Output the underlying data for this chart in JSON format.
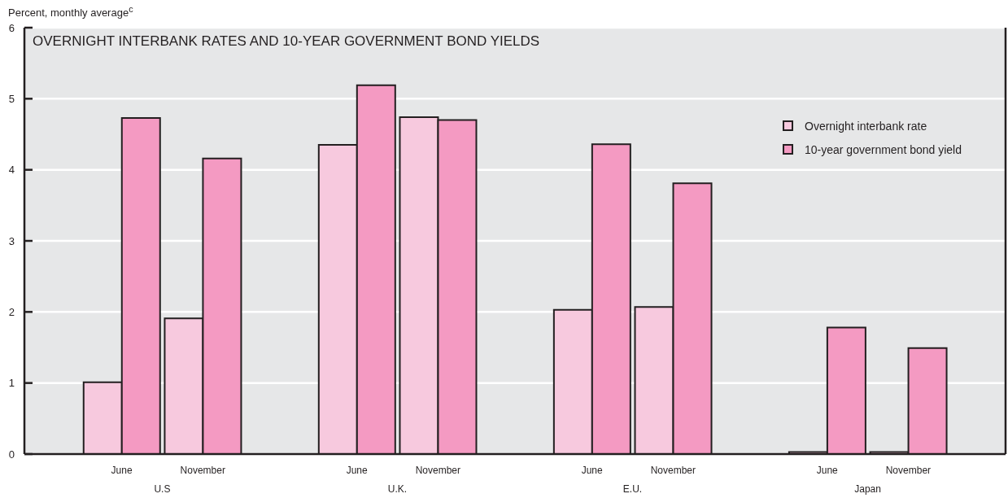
{
  "chart_data": {
    "type": "bar",
    "title": "OVERNIGHT INTERBANK RATES AND 10-YEAR GOVERNMENT BOND YIELDS",
    "ylabel": "Percent, monthly average$^{c}$",
    "categories": [
      "June",
      "November",
      "June",
      "November",
      "June",
      "November",
      "June",
      "November"
    ],
    "annotations": [
      "U.S",
      "U.K.",
      "E.U.",
      "Japan"
    ],
    "series": [
      {
        "name": "Overnight interbank rate",
        "color": "#f7c9de",
        "values": [
          1.01,
          1.91,
          4.35,
          4.74,
          2.03,
          2.07,
          0.03,
          0.03
        ]
      },
      {
        "name": "10-year government bond yield",
        "color": "#f49ac2",
        "values": [
          4.73,
          4.16,
          5.19,
          4.7,
          4.36,
          3.81,
          1.78,
          1.49
        ]
      }
    ],
    "ylim": [
      0,
      6
    ],
    "yticks": [
      0,
      1,
      2,
      3,
      4,
      5,
      6
    ],
    "grid": "y",
    "legend": "top right"
  }
}
